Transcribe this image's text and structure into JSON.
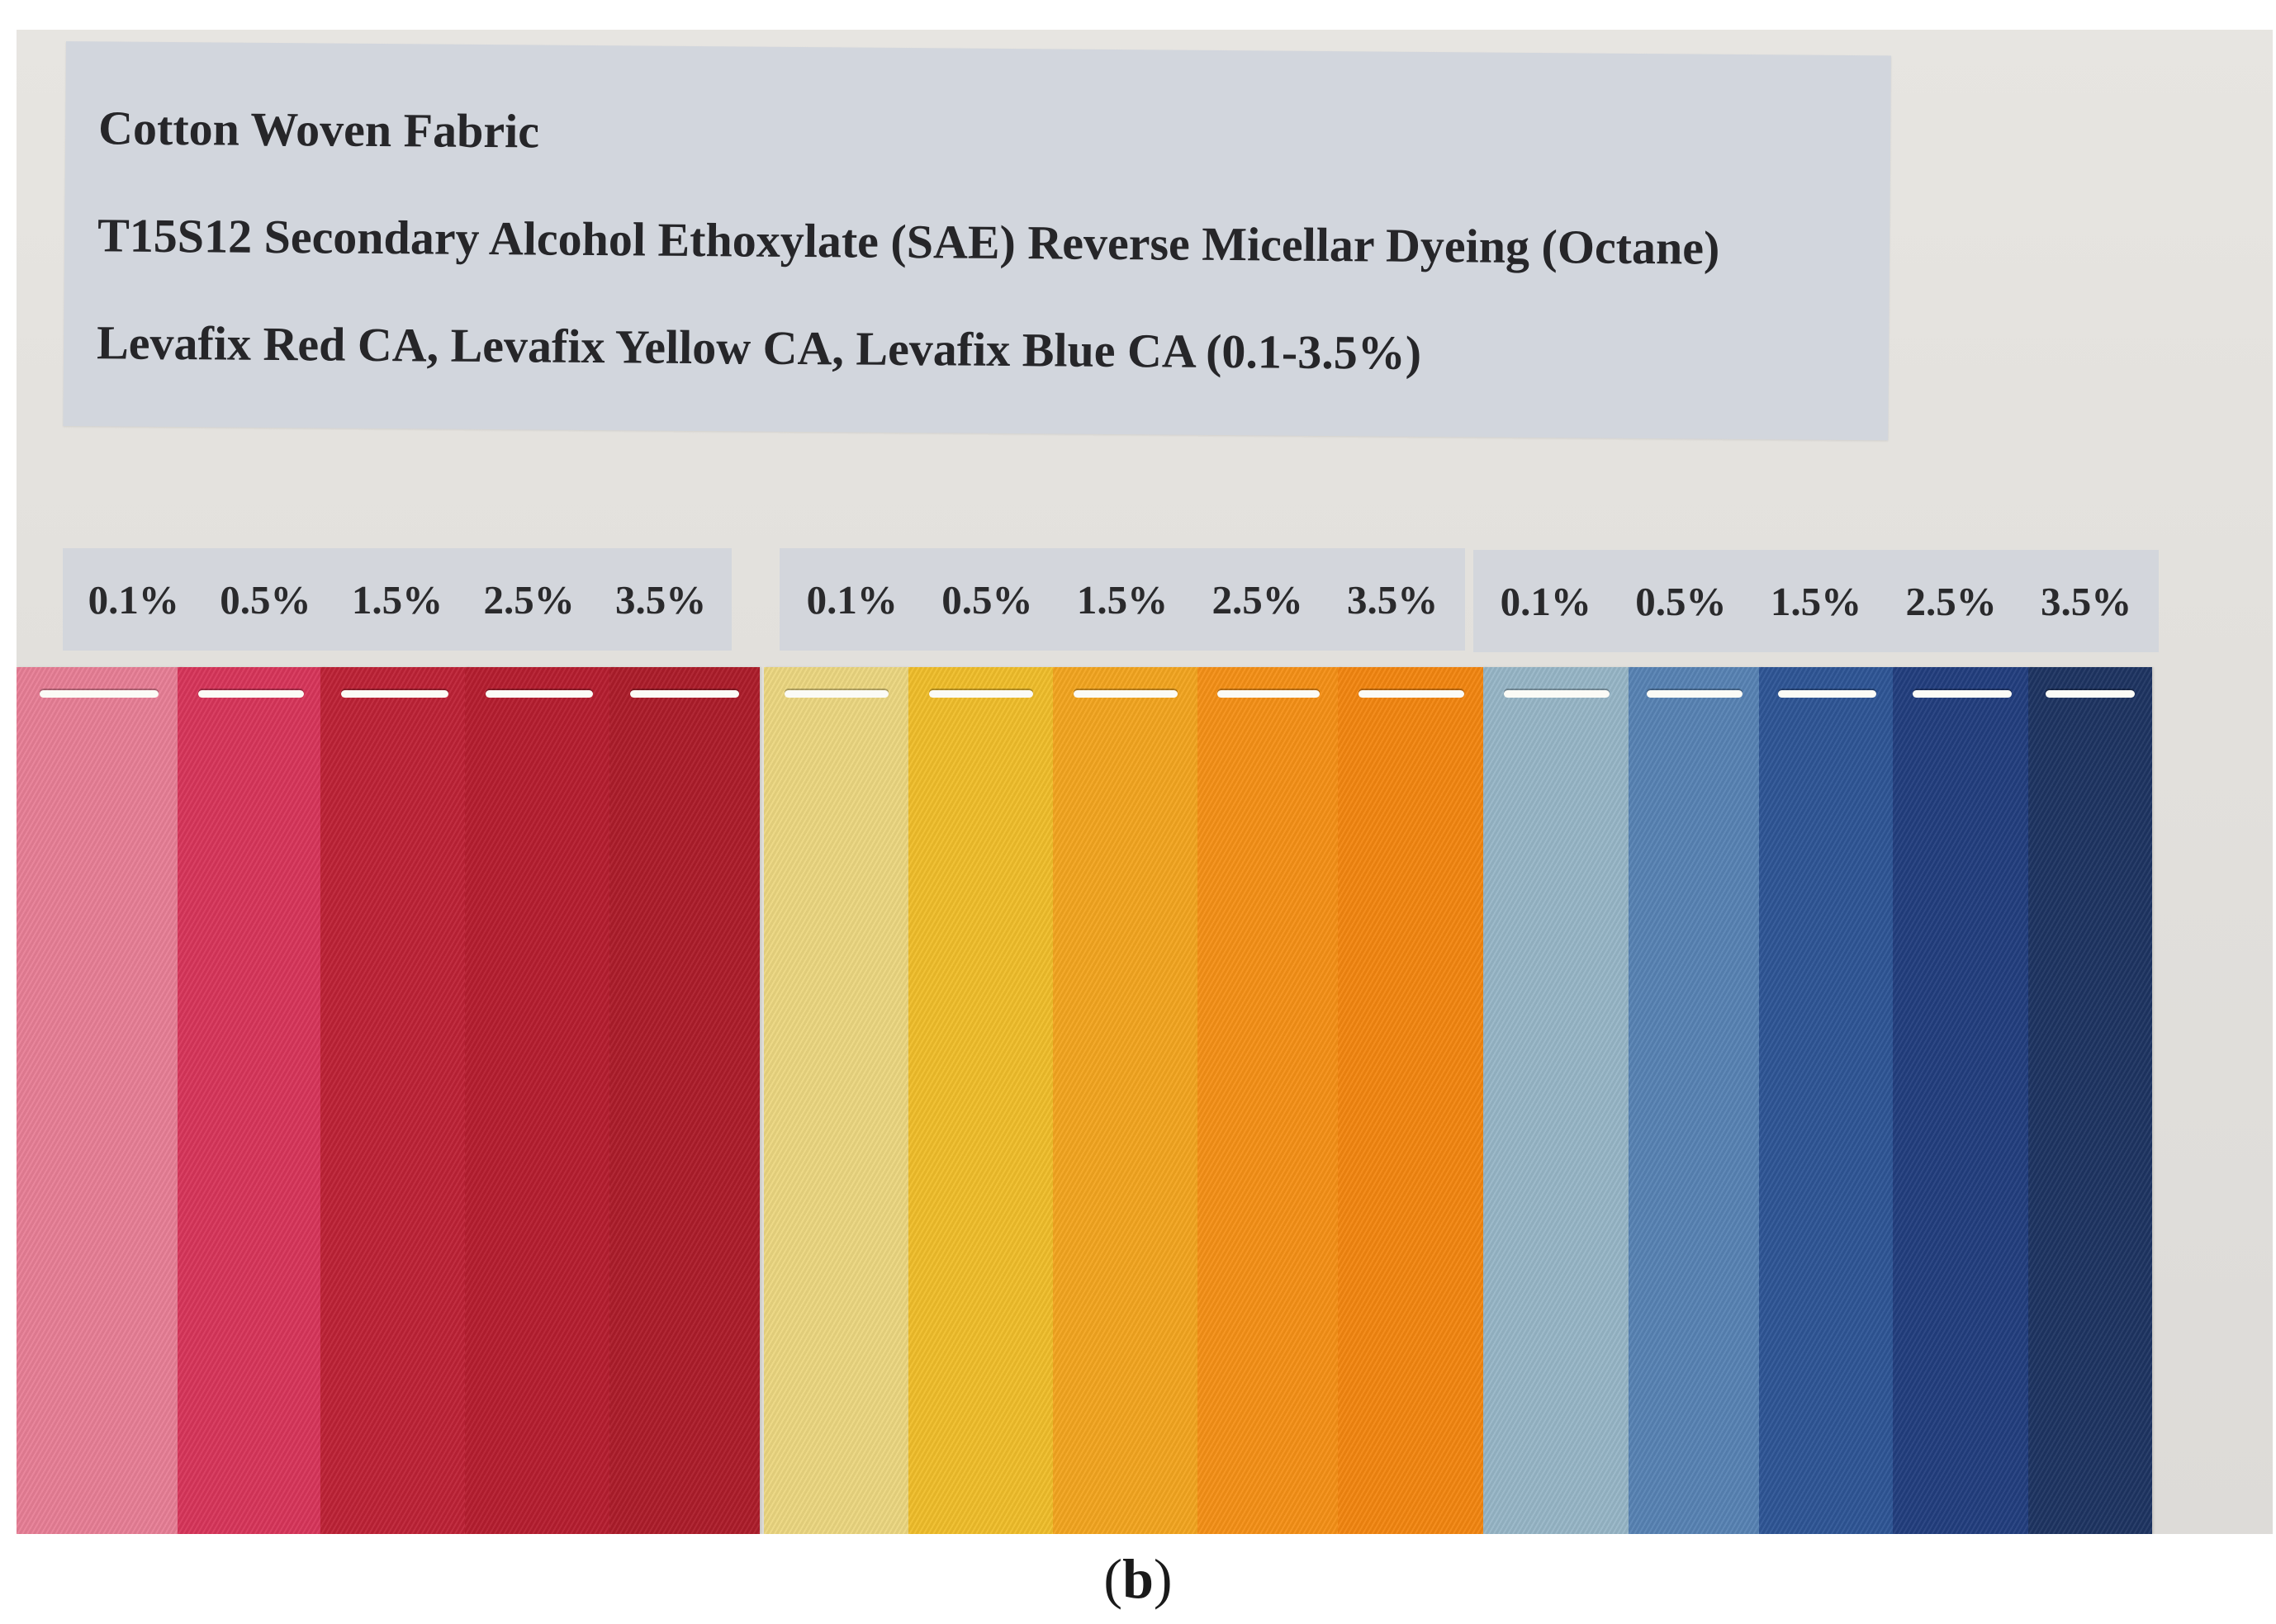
{
  "title_label": {
    "line1": "Cotton Woven Fabric",
    "line2": "T15S12 Secondary Alcohol Ethoxylate (SAE) Reverse Micellar Dyeing (Octane)",
    "line3": "Levafix Red CA, Levafix Yellow CA, Levafix Blue CA (0.1-3.5%)"
  },
  "concentration_groups": [
    {
      "dye": "Levafix Red CA",
      "labels": [
        "0.1%",
        "0.5%",
        "1.5%",
        "2.5%",
        "3.5%"
      ],
      "swatch_colors": [
        "#e87e96",
        "#d8355a",
        "#be2236",
        "#b61d2f",
        "#ad1c2a"
      ]
    },
    {
      "dye": "Levafix Yellow CA",
      "labels": [
        "0.1%",
        "0.5%",
        "1.5%",
        "2.5%",
        "3.5%"
      ],
      "swatch_colors": [
        "#ecd780",
        "#f0be2a",
        "#f3a51f",
        "#f59016",
        "#f38610"
      ]
    },
    {
      "dye": "Levafix Blue CA",
      "labels": [
        "0.1%",
        "0.5%",
        "1.5%",
        "2.5%",
        "3.5%"
      ],
      "swatch_colors": [
        "#97b6c7",
        "#5783b4",
        "#2e5596",
        "#223e7e",
        "#1e3462"
      ]
    }
  ],
  "caption": {
    "open": "(",
    "letter": "b",
    "close": ")"
  }
}
